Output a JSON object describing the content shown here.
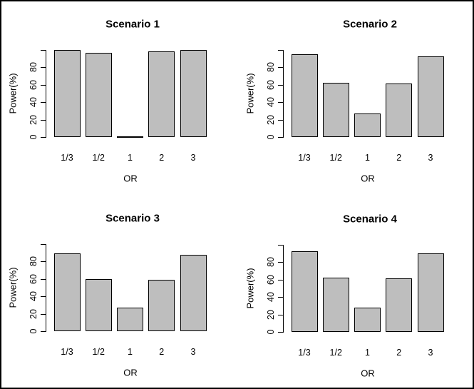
{
  "window": {
    "background": "#ffffff",
    "frame_border_color": "#000000"
  },
  "palette": {
    "bar_fill": "#bebebe",
    "bar_border": "#000000",
    "text_color": "#000000"
  },
  "chart_data": [
    {
      "type": "bar",
      "title": "Scenario 1",
      "categories": [
        "1/3",
        "1/2",
        "1",
        "2",
        "3"
      ],
      "values": [
        100,
        96,
        1,
        98,
        100
      ],
      "xlabel": "OR",
      "ylabel": "Power(%)",
      "ylim": [
        0,
        100
      ],
      "yticks": [
        0,
        20,
        40,
        60,
        80,
        100
      ],
      "ytick_labels": [
        "0",
        "20",
        "40",
        "60",
        "80",
        ""
      ],
      "grid": false,
      "legend": "none"
    },
    {
      "type": "bar",
      "title": "Scenario 2",
      "categories": [
        "1/3",
        "1/2",
        "1",
        "2",
        "3"
      ],
      "values": [
        95,
        62,
        27,
        61,
        92
      ],
      "xlabel": "OR",
      "ylabel": "Power(%)",
      "ylim": [
        0,
        100
      ],
      "yticks": [
        0,
        20,
        40,
        60,
        80,
        100
      ],
      "ytick_labels": [
        "0",
        "20",
        "40",
        "60",
        "80",
        ""
      ],
      "grid": false,
      "legend": "none"
    },
    {
      "type": "bar",
      "title": "Scenario 3",
      "categories": [
        "1/3",
        "1/2",
        "1",
        "2",
        "3"
      ],
      "values": [
        89,
        60,
        27,
        59,
        87
      ],
      "xlabel": "OR",
      "ylabel": "Power(%)",
      "ylim": [
        0,
        100
      ],
      "yticks": [
        0,
        20,
        40,
        60,
        80,
        100
      ],
      "ytick_labels": [
        "0",
        "20",
        "40",
        "60",
        "80",
        ""
      ],
      "grid": false,
      "legend": "none"
    },
    {
      "type": "bar",
      "title": "Scenario 4",
      "categories": [
        "1/3",
        "1/2",
        "1",
        "2",
        "3"
      ],
      "values": [
        92,
        62,
        28,
        61,
        90
      ],
      "xlabel": "OR",
      "ylabel": "Power(%)",
      "ylim": [
        0,
        100
      ],
      "yticks": [
        0,
        20,
        40,
        60,
        80,
        100
      ],
      "ytick_labels": [
        "0",
        "20",
        "40",
        "60",
        "80",
        ""
      ],
      "grid": false,
      "legend": "none"
    }
  ]
}
